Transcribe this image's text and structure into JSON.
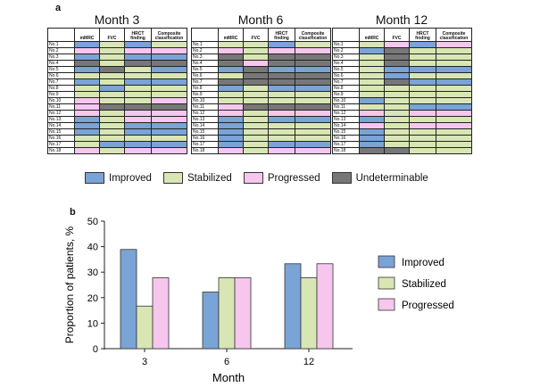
{
  "panel_a_label": "a",
  "panel_b_label": "b",
  "colors": {
    "I": "#7aa3d6",
    "S": "#d8e6b4",
    "P": "#f6c6ee",
    "U": "#777777"
  },
  "column_headers": [
    "",
    "mMRC",
    "FVC",
    "HRCT finding",
    "Composite classification"
  ],
  "patients": [
    "No.1",
    "No.2",
    "No.3",
    "No.4",
    "No.5",
    "No.6",
    "No.7",
    "No.8",
    "No.9",
    "No.10",
    "No.11",
    "No.12",
    "No.13",
    "No.14",
    "No.15",
    "No.16",
    "No.17",
    "No.18"
  ],
  "grids": [
    {
      "title": "Month 3",
      "rows": [
        [
          "I",
          "S",
          "I",
          "S"
        ],
        [
          "P",
          "S",
          "P",
          "P"
        ],
        [
          "I",
          "S",
          "I",
          "I"
        ],
        [
          "U",
          "S",
          "U",
          "U"
        ],
        [
          "I",
          "U",
          "S",
          "I"
        ],
        [
          "S",
          "S",
          "S",
          "S"
        ],
        [
          "I",
          "S",
          "I",
          "I"
        ],
        [
          "S",
          "I",
          "S",
          "S"
        ],
        [
          "S",
          "S",
          "S",
          "S"
        ],
        [
          "P",
          "S",
          "S",
          "P"
        ],
        [
          "P",
          "U",
          "U",
          "U"
        ],
        [
          "P",
          "S",
          "P",
          "P"
        ],
        [
          "I",
          "S",
          "P",
          "P"
        ],
        [
          "I",
          "S",
          "I",
          "I"
        ],
        [
          "I",
          "S",
          "I",
          "I"
        ],
        [
          "S",
          "S",
          "S",
          "S"
        ],
        [
          "S",
          "I",
          "I",
          "I"
        ],
        [
          "P",
          "S",
          "P",
          "P"
        ]
      ]
    },
    {
      "title": "Month 6",
      "rows": [
        [
          "S",
          "S",
          "I",
          "S"
        ],
        [
          "P",
          "S",
          "P",
          "P"
        ],
        [
          "U",
          "S",
          "U",
          "U"
        ],
        [
          "U",
          "P",
          "U",
          "U"
        ],
        [
          "I",
          "U",
          "I",
          "I"
        ],
        [
          "S",
          "U",
          "U",
          "U"
        ],
        [
          "U",
          "U",
          "U",
          "U"
        ],
        [
          "I",
          "S",
          "I",
          "I"
        ],
        [
          "S",
          "S",
          "S",
          "S"
        ],
        [
          "S",
          "S",
          "S",
          "S"
        ],
        [
          "P",
          "U",
          "U",
          "U"
        ],
        [
          "P",
          "S",
          "P",
          "P"
        ],
        [
          "I",
          "S",
          "I",
          "I"
        ],
        [
          "I",
          "S",
          "S",
          "S"
        ],
        [
          "I",
          "S",
          "S",
          "S"
        ],
        [
          "I",
          "S",
          "S",
          "S"
        ],
        [
          "I",
          "S",
          "I",
          "I"
        ],
        [
          "P",
          "S",
          "P",
          "P"
        ]
      ]
    },
    {
      "title": "Month 12",
      "rows": [
        [
          "S",
          "P",
          "I",
          "P"
        ],
        [
          "I",
          "U",
          "S",
          "S"
        ],
        [
          "S",
          "U",
          "S",
          "S"
        ],
        [
          "S",
          "U",
          "S",
          "S"
        ],
        [
          "S",
          "I",
          "I",
          "I"
        ],
        [
          "S",
          "I",
          "S",
          "S"
        ],
        [
          "S",
          "U",
          "I",
          "I"
        ],
        [
          "S",
          "S",
          "S",
          "S"
        ],
        [
          "S",
          "S",
          "S",
          "S"
        ],
        [
          "I",
          "S",
          "S",
          "S"
        ],
        [
          "S",
          "S",
          "I",
          "I"
        ],
        [
          "P",
          "S",
          "P",
          "P"
        ],
        [
          "I",
          "S",
          "S",
          "S"
        ],
        [
          "P",
          "S",
          "P",
          "P"
        ],
        [
          "I",
          "S",
          "S",
          "S"
        ],
        [
          "I",
          "S",
          "S",
          "S"
        ],
        [
          "I",
          "S",
          "S",
          "S"
        ],
        [
          "U",
          "U",
          "S",
          "S"
        ]
      ]
    }
  ],
  "legend_top": [
    {
      "key": "I",
      "label": "Improved"
    },
    {
      "key": "S",
      "label": "Stabilized"
    },
    {
      "key": "P",
      "label": "Progressed"
    },
    {
      "key": "U",
      "label": "Undeterminable"
    }
  ],
  "chart_data": {
    "type": "bar",
    "categories": [
      "3",
      "6",
      "12"
    ],
    "series": [
      {
        "name": "Improved",
        "values": [
          38.9,
          22.2,
          33.3
        ],
        "color": "#7aa3d6"
      },
      {
        "name": "Stabilized",
        "values": [
          16.7,
          27.8,
          27.8
        ],
        "color": "#d8e6b4"
      },
      {
        "name": "Progressed",
        "values": [
          27.8,
          27.8,
          33.3
        ],
        "color": "#f6c6ee"
      }
    ],
    "xlabel": "Month",
    "ylabel": "Proportion of patients, %",
    "ylim": [
      0,
      50
    ],
    "yticks": [
      "0",
      "10",
      "20",
      "30",
      "40",
      "50"
    ],
    "grid": false,
    "legend": "right"
  }
}
